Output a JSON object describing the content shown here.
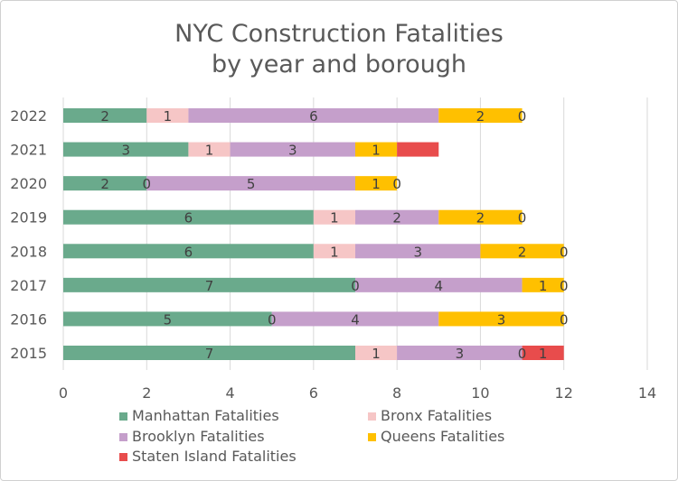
{
  "chart_data": {
    "type": "bar",
    "orientation": "horizontal",
    "stacked": true,
    "title": [
      "NYC Construction Fatalities",
      "by year and borough"
    ],
    "categories": [
      "2022",
      "2021",
      "2020",
      "2019",
      "2018",
      "2017",
      "2016",
      "2015"
    ],
    "series": [
      {
        "name": "Manhattan Fatalities",
        "color": "#6aaa8c",
        "values": [
          2,
          3,
          2,
          6,
          6,
          7,
          5,
          7
        ]
      },
      {
        "name": "Bronx Fatalities",
        "color": "#f6c6c6",
        "values": [
          1,
          1,
          0,
          1,
          1,
          0,
          0,
          1
        ]
      },
      {
        "name": "Brooklyn Fatalities",
        "color": "#c59fcb",
        "values": [
          6,
          3,
          5,
          2,
          3,
          4,
          4,
          3
        ]
      },
      {
        "name": "Queens Fatalities",
        "color": "#ffc000",
        "values": [
          2,
          1,
          1,
          2,
          2,
          1,
          3,
          0
        ]
      },
      {
        "name": "Staten Island Fatalities",
        "color": "#e84c4c",
        "values": [
          0,
          1,
          0,
          0,
          0,
          0,
          0,
          1
        ]
      }
    ],
    "label_visibility": [
      [
        true,
        true,
        true,
        true,
        true,
        true,
        true,
        true
      ],
      [
        true,
        true,
        true,
        true,
        true,
        true,
        true,
        true
      ],
      [
        true,
        true,
        true,
        true,
        true,
        true,
        true,
        true
      ],
      [
        true,
        true,
        true,
        true,
        true,
        true,
        true,
        true
      ],
      [
        true,
        false,
        true,
        true,
        true,
        true,
        true,
        true
      ]
    ],
    "xlim": [
      0,
      14
    ],
    "xticks": [
      0,
      2,
      4,
      6,
      8,
      10,
      12,
      14
    ],
    "grid": true,
    "legend_position": "bottom",
    "xlabel": "",
    "ylabel": ""
  }
}
